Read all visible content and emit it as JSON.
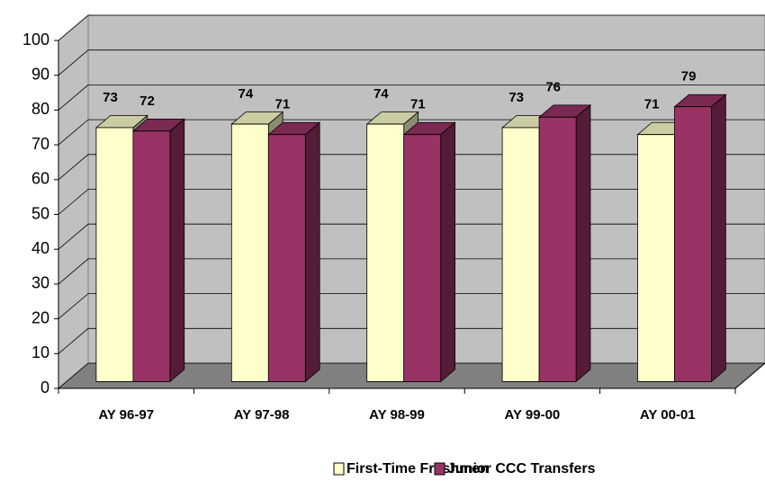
{
  "chart_data": {
    "type": "bar3d",
    "categories": [
      "AY 96-97",
      "AY 97-98",
      "AY 98-99",
      "AY 99-00",
      "AY 00-01"
    ],
    "series": [
      {
        "name": "First-Time Freshmen",
        "color": "#ffffcc",
        "values": [
          73,
          74,
          74,
          73,
          71
        ]
      },
      {
        "name": "Junior CCC Transfers",
        "color": "#993366",
        "values": [
          72,
          71,
          71,
          76,
          79
        ]
      }
    ],
    "ylim": [
      0,
      100
    ],
    "yticks": [
      0,
      10,
      20,
      30,
      40,
      50,
      60,
      70,
      80,
      90,
      100
    ],
    "grid": true,
    "legend": "bottom"
  }
}
